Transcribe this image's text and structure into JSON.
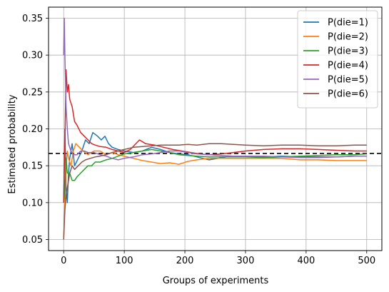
{
  "chart_data": {
    "type": "line",
    "title": "",
    "xlabel": "Groups of experiments",
    "ylabel": "Estimated probability",
    "xlim": [
      -25,
      525
    ],
    "ylim": [
      0.035,
      0.365
    ],
    "xticks": [
      0,
      100,
      200,
      300,
      400,
      500
    ],
    "yticks": [
      0.05,
      0.1,
      0.15,
      0.2,
      0.25,
      0.3,
      0.35
    ],
    "ytick_labels": [
      "0.05",
      "0.10",
      "0.15",
      "0.20",
      "0.25",
      "0.30",
      "0.35"
    ],
    "grid": true,
    "legend_position": "top-right",
    "reference_line": {
      "y": 0.1667,
      "style": "dashed",
      "color": "#000000"
    },
    "series": [
      {
        "name": "P(die=1)",
        "color": "#1f77b4",
        "points": [
          [
            0,
            0.1
          ],
          [
            2,
            0.2
          ],
          [
            4,
            0.12
          ],
          [
            6,
            0.1
          ],
          [
            8,
            0.14
          ],
          [
            10,
            0.16
          ],
          [
            14,
            0.18
          ],
          [
            18,
            0.15
          ],
          [
            24,
            0.16
          ],
          [
            30,
            0.17
          ],
          [
            36,
            0.185
          ],
          [
            42,
            0.18
          ],
          [
            48,
            0.195
          ],
          [
            56,
            0.19
          ],
          [
            62,
            0.185
          ],
          [
            68,
            0.19
          ],
          [
            74,
            0.18
          ],
          [
            80,
            0.175
          ],
          [
            90,
            0.172
          ],
          [
            100,
            0.17
          ],
          [
            115,
            0.168
          ],
          [
            130,
            0.17
          ],
          [
            145,
            0.175
          ],
          [
            160,
            0.172
          ],
          [
            175,
            0.168
          ],
          [
            190,
            0.166
          ],
          [
            205,
            0.165
          ],
          [
            220,
            0.162
          ],
          [
            240,
            0.158
          ],
          [
            255,
            0.16
          ],
          [
            275,
            0.163
          ],
          [
            300,
            0.163
          ],
          [
            330,
            0.162
          ],
          [
            360,
            0.163
          ],
          [
            390,
            0.162
          ],
          [
            420,
            0.162
          ],
          [
            450,
            0.162
          ],
          [
            480,
            0.163
          ],
          [
            500,
            0.163
          ]
        ]
      },
      {
        "name": "P(die=2)",
        "color": "#ff7f0e",
        "points": [
          [
            0,
            0.05
          ],
          [
            2,
            0.1
          ],
          [
            4,
            0.15
          ],
          [
            6,
            0.17
          ],
          [
            8,
            0.16
          ],
          [
            12,
            0.15
          ],
          [
            16,
            0.17
          ],
          [
            20,
            0.18
          ],
          [
            26,
            0.175
          ],
          [
            32,
            0.17
          ],
          [
            40,
            0.165
          ],
          [
            50,
            0.17
          ],
          [
            60,
            0.17
          ],
          [
            70,
            0.165
          ],
          [
            80,
            0.168
          ],
          [
            90,
            0.165
          ],
          [
            100,
            0.163
          ],
          [
            115,
            0.16
          ],
          [
            130,
            0.157
          ],
          [
            145,
            0.155
          ],
          [
            160,
            0.153
          ],
          [
            175,
            0.154
          ],
          [
            190,
            0.152
          ],
          [
            205,
            0.156
          ],
          [
            220,
            0.158
          ],
          [
            240,
            0.16
          ],
          [
            260,
            0.16
          ],
          [
            280,
            0.16
          ],
          [
            300,
            0.16
          ],
          [
            330,
            0.16
          ],
          [
            360,
            0.16
          ],
          [
            390,
            0.158
          ],
          [
            420,
            0.158
          ],
          [
            450,
            0.157
          ],
          [
            480,
            0.157
          ],
          [
            500,
            0.157
          ]
        ]
      },
      {
        "name": "P(die=3)",
        "color": "#2ca02c",
        "points": [
          [
            0,
            0.1
          ],
          [
            2,
            0.12
          ],
          [
            4,
            0.16
          ],
          [
            6,
            0.14
          ],
          [
            10,
            0.14
          ],
          [
            14,
            0.13
          ],
          [
            18,
            0.13
          ],
          [
            22,
            0.135
          ],
          [
            28,
            0.14
          ],
          [
            34,
            0.145
          ],
          [
            40,
            0.15
          ],
          [
            46,
            0.15
          ],
          [
            52,
            0.155
          ],
          [
            60,
            0.155
          ],
          [
            70,
            0.158
          ],
          [
            80,
            0.16
          ],
          [
            90,
            0.163
          ],
          [
            100,
            0.166
          ],
          [
            115,
            0.168
          ],
          [
            130,
            0.17
          ],
          [
            145,
            0.172
          ],
          [
            160,
            0.17
          ],
          [
            175,
            0.168
          ],
          [
            190,
            0.165
          ],
          [
            205,
            0.164
          ],
          [
            220,
            0.163
          ],
          [
            240,
            0.162
          ],
          [
            260,
            0.162
          ],
          [
            280,
            0.162
          ],
          [
            300,
            0.162
          ],
          [
            330,
            0.161
          ],
          [
            360,
            0.162
          ],
          [
            390,
            0.163
          ],
          [
            420,
            0.164
          ],
          [
            450,
            0.165
          ],
          [
            480,
            0.165
          ],
          [
            500,
            0.166
          ]
        ]
      },
      {
        "name": "P(die=4)",
        "color": "#d62728",
        "points": [
          [
            0,
            0.1
          ],
          [
            2,
            0.18
          ],
          [
            4,
            0.28
          ],
          [
            6,
            0.25
          ],
          [
            8,
            0.26
          ],
          [
            10,
            0.24
          ],
          [
            14,
            0.23
          ],
          [
            18,
            0.21
          ],
          [
            22,
            0.205
          ],
          [
            28,
            0.195
          ],
          [
            34,
            0.19
          ],
          [
            40,
            0.185
          ],
          [
            46,
            0.18
          ],
          [
            52,
            0.178
          ],
          [
            60,
            0.176
          ],
          [
            70,
            0.175
          ],
          [
            80,
            0.172
          ],
          [
            90,
            0.17
          ],
          [
            100,
            0.168
          ],
          [
            110,
            0.172
          ],
          [
            125,
            0.185
          ],
          [
            135,
            0.18
          ],
          [
            150,
            0.178
          ],
          [
            165,
            0.175
          ],
          [
            180,
            0.172
          ],
          [
            195,
            0.17
          ],
          [
            210,
            0.168
          ],
          [
            225,
            0.166
          ],
          [
            240,
            0.165
          ],
          [
            260,
            0.166
          ],
          [
            280,
            0.168
          ],
          [
            300,
            0.17
          ],
          [
            330,
            0.172
          ],
          [
            360,
            0.173
          ],
          [
            390,
            0.173
          ],
          [
            420,
            0.172
          ],
          [
            450,
            0.171
          ],
          [
            480,
            0.17
          ],
          [
            500,
            0.17
          ]
        ]
      },
      {
        "name": "P(die=5)",
        "color": "#9467bd",
        "points": [
          [
            0,
            0.3
          ],
          [
            1,
            0.35
          ],
          [
            2,
            0.3
          ],
          [
            4,
            0.23
          ],
          [
            6,
            0.2
          ],
          [
            8,
            0.18
          ],
          [
            12,
            0.17
          ],
          [
            16,
            0.165
          ],
          [
            22,
            0.165
          ],
          [
            28,
            0.17
          ],
          [
            34,
            0.17
          ],
          [
            40,
            0.168
          ],
          [
            50,
            0.168
          ],
          [
            60,
            0.165
          ],
          [
            70,
            0.163
          ],
          [
            80,
            0.16
          ],
          [
            90,
            0.158
          ],
          [
            100,
            0.16
          ],
          [
            115,
            0.162
          ],
          [
            130,
            0.165
          ],
          [
            145,
            0.166
          ],
          [
            160,
            0.168
          ],
          [
            175,
            0.17
          ],
          [
            190,
            0.17
          ],
          [
            205,
            0.168
          ],
          [
            220,
            0.166
          ],
          [
            240,
            0.165
          ],
          [
            260,
            0.164
          ],
          [
            280,
            0.163
          ],
          [
            300,
            0.163
          ],
          [
            330,
            0.163
          ],
          [
            360,
            0.162
          ],
          [
            390,
            0.161
          ],
          [
            420,
            0.161
          ],
          [
            450,
            0.162
          ],
          [
            480,
            0.163
          ],
          [
            500,
            0.163
          ]
        ]
      },
      {
        "name": "P(die=6)",
        "color": "#8c564b",
        "points": [
          [
            0,
            0.05
          ],
          [
            2,
            0.09
          ],
          [
            4,
            0.11
          ],
          [
            6,
            0.12
          ],
          [
            10,
            0.14
          ],
          [
            14,
            0.15
          ],
          [
            18,
            0.145
          ],
          [
            24,
            0.15
          ],
          [
            30,
            0.155
          ],
          [
            36,
            0.158
          ],
          [
            44,
            0.16
          ],
          [
            52,
            0.162
          ],
          [
            60,
            0.163
          ],
          [
            70,
            0.165
          ],
          [
            80,
            0.168
          ],
          [
            90,
            0.17
          ],
          [
            100,
            0.172
          ],
          [
            115,
            0.175
          ],
          [
            130,
            0.176
          ],
          [
            145,
            0.177
          ],
          [
            160,
            0.178
          ],
          [
            175,
            0.178
          ],
          [
            190,
            0.178
          ],
          [
            205,
            0.179
          ],
          [
            220,
            0.178
          ],
          [
            240,
            0.18
          ],
          [
            260,
            0.18
          ],
          [
            280,
            0.179
          ],
          [
            300,
            0.178
          ],
          [
            330,
            0.177
          ],
          [
            360,
            0.178
          ],
          [
            390,
            0.178
          ],
          [
            420,
            0.177
          ],
          [
            450,
            0.177
          ],
          [
            480,
            0.178
          ],
          [
            500,
            0.178
          ]
        ]
      }
    ]
  }
}
